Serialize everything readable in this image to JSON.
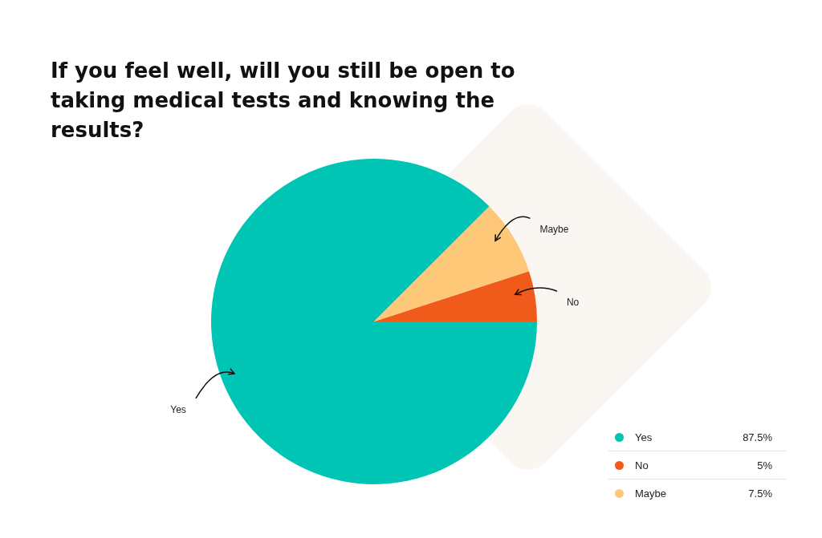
{
  "chart_data": {
    "type": "pie",
    "title": "If you feel well, will you still be open to taking medical tests and knowing the results?",
    "categories": [
      "Yes",
      "No",
      "Maybe"
    ],
    "values": [
      87.5,
      5,
      7.5
    ],
    "value_labels": [
      "87.5%",
      "5%",
      "7.5%"
    ],
    "colors": [
      "#00c4b4",
      "#f05a1a",
      "#ffc878"
    ],
    "legend": "bottom right"
  }
}
